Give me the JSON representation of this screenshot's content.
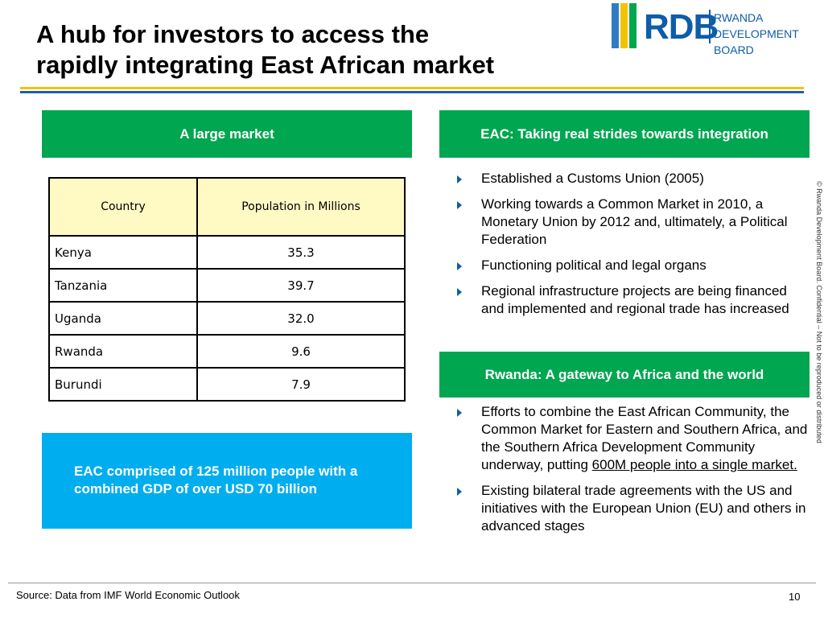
{
  "title": {
    "line1": "A hub for investors to access the",
    "line2": "rapidly integrating East African market"
  },
  "logo": {
    "mark": "RDB",
    "line1": "RWANDA",
    "line2": "DEVELOPMENT BOARD",
    "bar_colors": [
      "#2f7cc4",
      "#f2c300",
      "#00a650"
    ]
  },
  "left_panel": {
    "header": "A large market",
    "table": {
      "headers": [
        "Country",
        "Population in Millions"
      ],
      "rows": [
        [
          "Kenya",
          "35.3"
        ],
        [
          "Tanzania",
          "39.7"
        ],
        [
          "Uganda",
          "32.0"
        ],
        [
          "Rwanda",
          "9.6"
        ],
        [
          "Burundi",
          "7.9"
        ]
      ]
    },
    "callout": "EAC comprised of 125 million people with a combined GDP of over USD 70 billion"
  },
  "right_panel": {
    "section1": {
      "header": "EAC: Taking real strides towards integration",
      "bullets": [
        "Established a Customs Union (2005)",
        "Working towards a Common Market in 2010, a Monetary Union by 2012 and, ultimately, a Political Federation",
        "Functioning political and legal organs",
        "Regional infrastructure projects are being financed and implemented and regional trade has increased"
      ]
    },
    "section2": {
      "header": "Rwanda: A gateway to Africa and the world",
      "bullet1_text": "Efforts to combine the East African Community, the Common Market for Eastern and Southern Africa, and the Southern Africa Development Community underway, putting ",
      "bullet1_underlined": "600M people into a single market.",
      "bullet2": "Existing bilateral trade agreements with the US and initiatives with the European Union (EU) and others in advanced stages"
    }
  },
  "side_note": "© Rwanda Development Board. Confidential – Not to be reproduced or distributed",
  "footer": {
    "source": "Source: Data from IMF World Economic Outlook",
    "page_number": "10"
  },
  "colors": {
    "green": "#00a650",
    "blue_callout": "#00adef",
    "table_header_bg": "#fff9c4",
    "rule_yellow": "#f2c300",
    "rule_blue": "#1f5fa8"
  }
}
